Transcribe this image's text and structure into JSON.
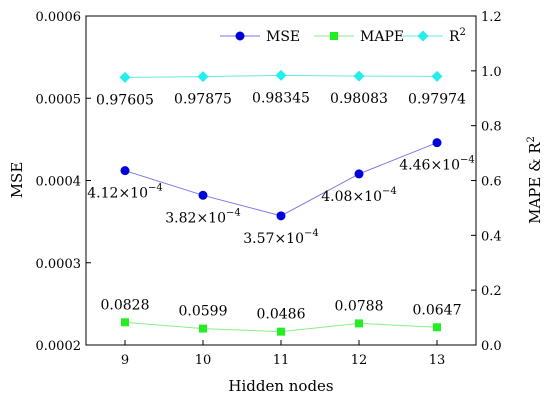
{
  "chart_data": {
    "type": "line",
    "x": [
      9,
      10,
      11,
      12,
      13
    ],
    "xlabel": "Hidden nodes",
    "xlim": [
      8.5,
      13.5
    ],
    "y_left": {
      "label": "MSE",
      "lim": [
        0.0002,
        0.0006
      ],
      "ticks": [
        0.0002,
        0.0003,
        0.0004,
        0.0005,
        0.0006
      ],
      "tick_labels": [
        "0.0002",
        "0.0003",
        "0.0004",
        "0.0005",
        "0.0006"
      ]
    },
    "y_right": {
      "label": "MAPE & R²",
      "label_base": "MAPE & R",
      "label_sup": "2",
      "lim": [
        0,
        1.2
      ],
      "ticks": [
        0,
        0.2,
        0.4,
        0.6,
        0.8,
        1.0,
        1.2
      ],
      "tick_labels": [
        "0.0",
        "0.2",
        "0.4",
        "0.6",
        "0.8",
        "1.0",
        "1.2"
      ]
    },
    "series": [
      {
        "name": "MSE",
        "axis": "left",
        "color": "#0000dd",
        "line_color": "#7a7ae8",
        "marker": "circle",
        "values": [
          0.000412,
          0.000382,
          0.000357,
          0.000408,
          0.000446
        ],
        "labels": [
          {
            "base": "4.12×10",
            "exp": "−4"
          },
          {
            "base": "3.82×10",
            "exp": "−4"
          },
          {
            "base": "3.57×10",
            "exp": "−4"
          },
          {
            "base": "4.08×10",
            "exp": "−4"
          },
          {
            "base": "4.46×10",
            "exp": "−4"
          }
        ]
      },
      {
        "name": "MAPE",
        "axis": "right",
        "color": "#22ee22",
        "line_color": "#88ee88",
        "marker": "square",
        "values": [
          0.0828,
          0.0599,
          0.0486,
          0.0788,
          0.0647
        ],
        "labels": [
          "0.0828",
          "0.0599",
          "0.0486",
          "0.0788",
          "0.0647"
        ]
      },
      {
        "name": "R²",
        "name_base": "R",
        "name_sup": "2",
        "axis": "right",
        "color": "#22eeee",
        "line_color": "#66e8e8",
        "marker": "diamond",
        "values": [
          0.97605,
          0.97875,
          0.98345,
          0.98083,
          0.97974
        ],
        "labels": [
          "0.97605",
          "0.97875",
          "0.98345",
          "0.98083",
          "0.97974"
        ]
      }
    ],
    "legend": "top-right",
    "grid": false
  }
}
